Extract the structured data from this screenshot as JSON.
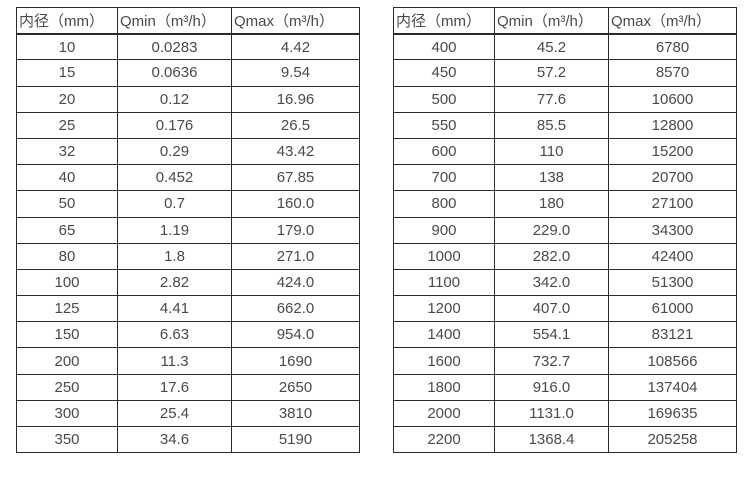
{
  "page": {
    "background_color": "#ffffff",
    "text_color": "#4a4a4a",
    "border_color": "#2b2b2b"
  },
  "chart_data": [
    {
      "type": "table",
      "title": "",
      "columns": [
        "内径（mm）",
        "Qmin（m³/h）",
        "Qmax（m³/h）"
      ],
      "rows": [
        [
          "10",
          "0.0283",
          "4.42"
        ],
        [
          "15",
          "0.0636",
          "9.54"
        ],
        [
          "20",
          "0.12",
          "16.96"
        ],
        [
          "25",
          "0.176",
          "26.5"
        ],
        [
          "32",
          "0.29",
          "43.42"
        ],
        [
          "40",
          "0.452",
          "67.85"
        ],
        [
          "50",
          "0.7",
          "160.0"
        ],
        [
          "65",
          "1.19",
          "179.0"
        ],
        [
          "80",
          "1.8",
          "271.0"
        ],
        [
          "100",
          "2.82",
          "424.0"
        ],
        [
          "125",
          "4.41",
          "662.0"
        ],
        [
          "150",
          "6.63",
          "954.0"
        ],
        [
          "200",
          "11.3",
          "1690"
        ],
        [
          "250",
          "17.6",
          "2650"
        ],
        [
          "300",
          "25.4",
          "3810"
        ],
        [
          "350",
          "34.6",
          "5190"
        ]
      ]
    },
    {
      "type": "table",
      "title": "",
      "columns": [
        "内径（mm）",
        "Qmin（m³/h）",
        "Qmax（m³/h）"
      ],
      "rows": [
        [
          "400",
          "45.2",
          "6780"
        ],
        [
          "450",
          "57.2",
          "8570"
        ],
        [
          "500",
          "77.6",
          "10600"
        ],
        [
          "550",
          "85.5",
          "12800"
        ],
        [
          "600",
          "110",
          "15200"
        ],
        [
          "700",
          "138",
          "20700"
        ],
        [
          "800",
          "180",
          "27100"
        ],
        [
          "900",
          "229.0",
          "34300"
        ],
        [
          "1000",
          "282.0",
          "42400"
        ],
        [
          "1100",
          "342.0",
          "51300"
        ],
        [
          "1200",
          "407.0",
          "61000"
        ],
        [
          "1400",
          "554.1",
          "83121"
        ],
        [
          "1600",
          "732.7",
          "108566"
        ],
        [
          "1800",
          "916.0",
          "137404"
        ],
        [
          "2000",
          "1131.0",
          "169635"
        ],
        [
          "2200",
          "1368.4",
          "205258"
        ]
      ]
    }
  ]
}
